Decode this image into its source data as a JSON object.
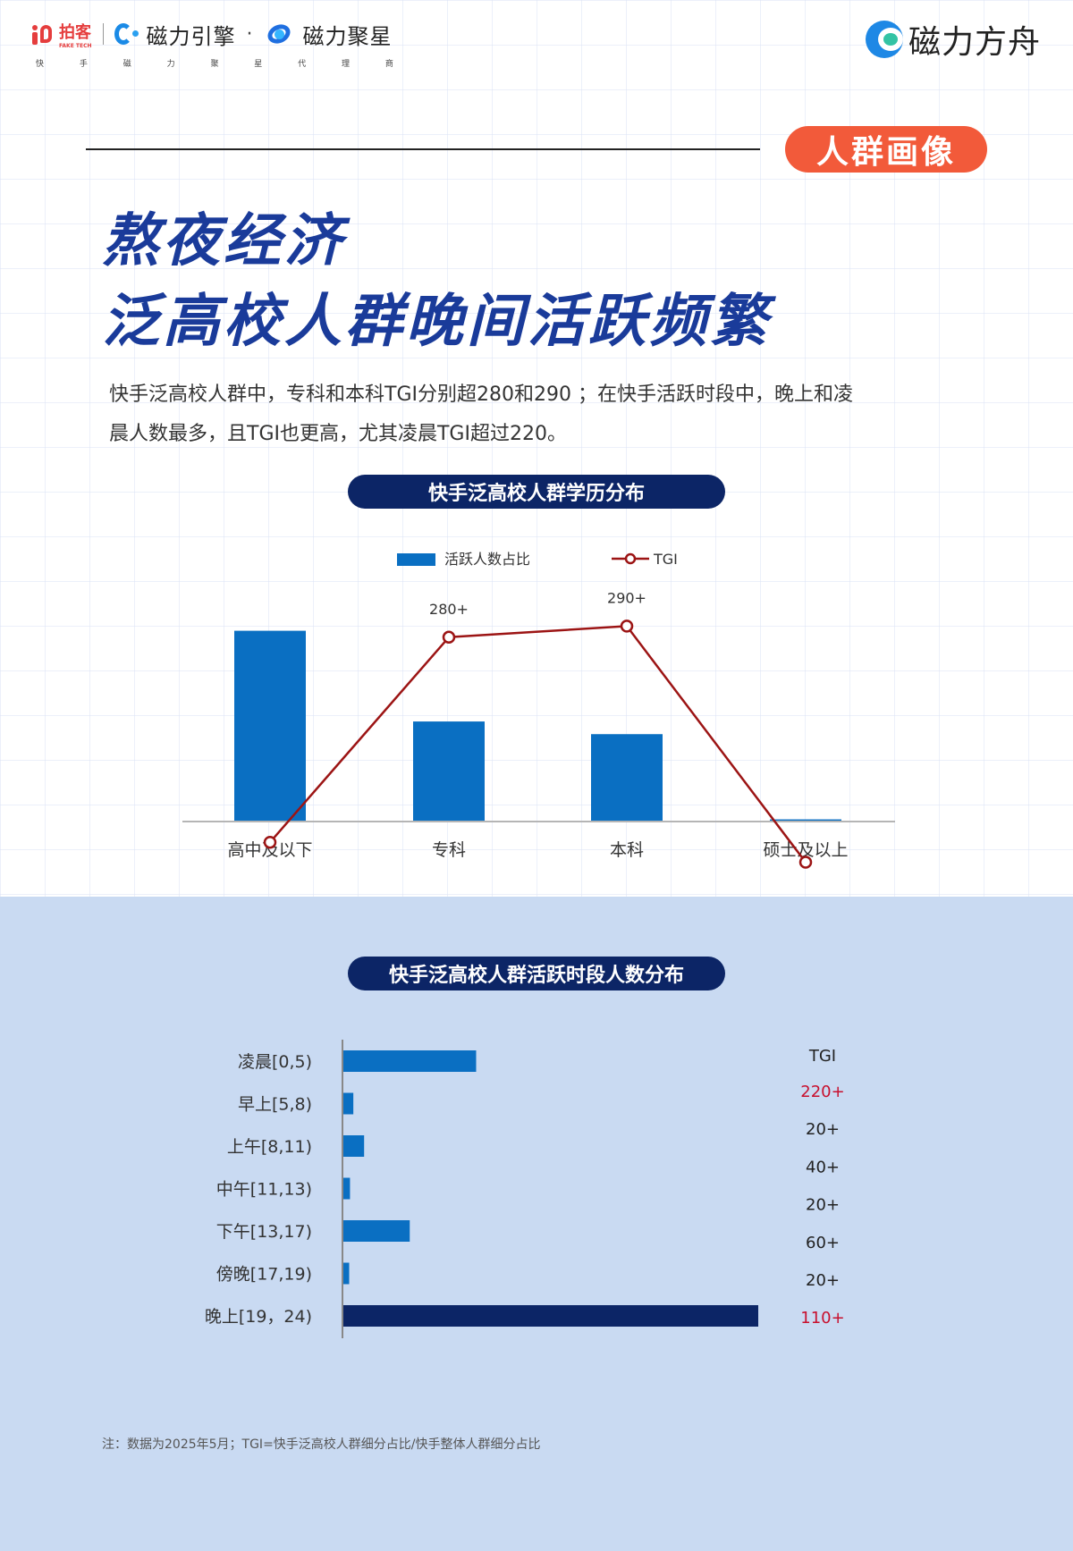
{
  "header": {
    "kuaishou_brand": "拍客",
    "kuaishou_sub": "FAKE TECH",
    "brand_ciliyinqing": "磁力引擎",
    "separator": "·",
    "brand_ciliujuxing": "磁力聚星",
    "tagline": [
      "快",
      "手",
      "磁",
      "力",
      "聚",
      "星",
      "代",
      "理",
      "商"
    ],
    "brand_right": "磁力方舟"
  },
  "tag_pill": "人群画像",
  "title": {
    "line1": "熬夜经济",
    "line2": "泛高校人群晚间活跃频繁"
  },
  "intro": {
    "line1": "快手泛高校人群中，专科和本科TGI分别超280和290 ；在快手活跃时段中，晚上和凌",
    "line2": "晨人数最多，且TGI也更高，尤其凌晨TGI超过220。"
  },
  "note": "注：数据为2025年5月；TGI=快手泛高校人群细分占比/快手整体人群细分占比",
  "colors": {
    "bar": "#0a6fc2",
    "bar_highlight": "#0c2566",
    "line": "#9c1414",
    "tgi_highlight": "#c8102e",
    "title": "#1a3b9a",
    "pill": "#0c2566",
    "tag": "#f25a3a"
  },
  "chart_data": [
    {
      "type": "bar",
      "title": "快手泛高校人群学历分布",
      "categories": [
        "高中及以下",
        "专科",
        "本科",
        "硕士及以上"
      ],
      "legend": [
        "活跃人数占比",
        "TGI"
      ],
      "series": [
        {
          "name": "活跃人数占比",
          "values": [
            45,
            23.5,
            20.5,
            0.3
          ]
        },
        {
          "name": "TGI",
          "values": [
            95,
            280,
            290,
            77
          ]
        }
      ],
      "data_labels": [
        "",
        "280+",
        "290+",
        ""
      ],
      "ylim_bar": [
        0,
        50
      ],
      "ylim_line": [
        0,
        350
      ],
      "legend_position": "top"
    },
    {
      "type": "bar",
      "orientation": "horizontal",
      "title": "快手泛高校人群活跃时段人数分布",
      "categories": [
        "凌晨[0,5)",
        "早上[5,8)",
        "上午[8,11)",
        "中午[11,13)",
        "下午[13,17)",
        "傍晚[17,19)",
        "晚上[19，24)"
      ],
      "values": [
        16,
        1.2,
        2.5,
        0.8,
        8,
        0.7,
        50
      ],
      "highlight_index": 6,
      "tgi_header": "TGI",
      "tgi_labels": [
        "220+",
        "20+",
        "40+",
        "20+",
        "60+",
        "20+",
        "110+"
      ],
      "tgi_highlight": [
        0,
        6
      ],
      "xlim": [
        0,
        50
      ]
    }
  ]
}
